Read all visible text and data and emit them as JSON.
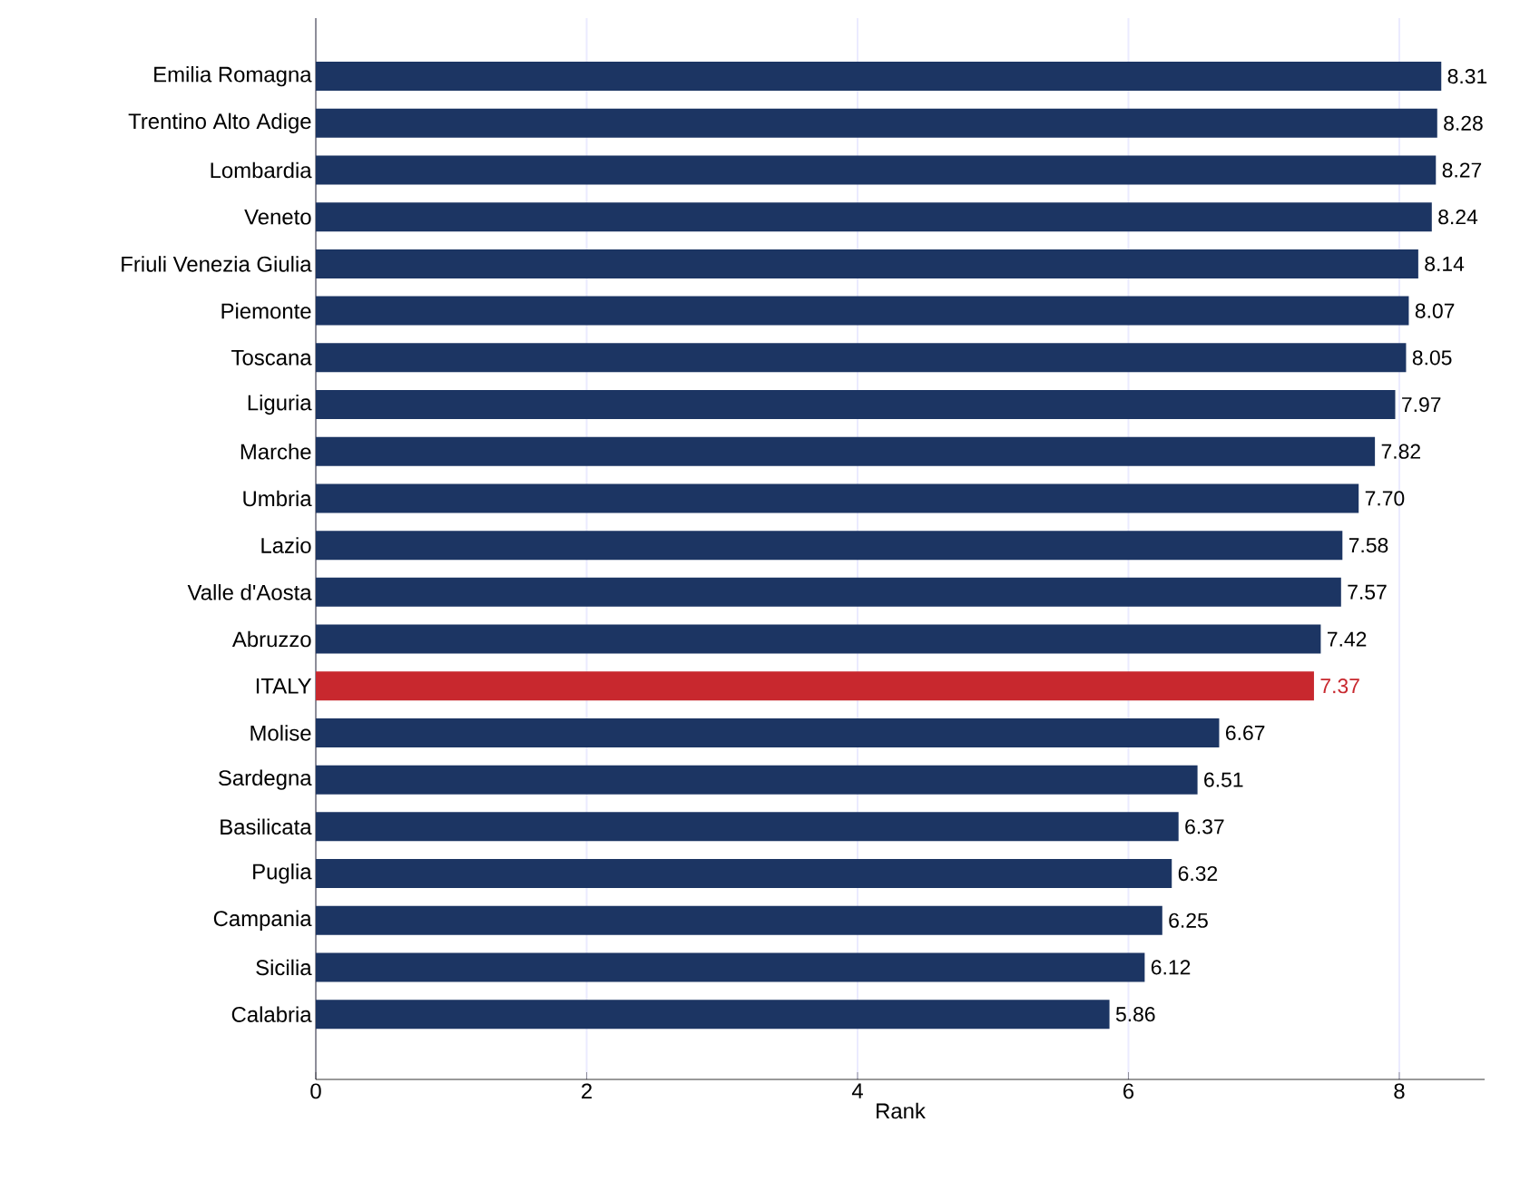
{
  "chart_data": {
    "type": "bar",
    "orientation": "horizontal",
    "xlabel": "Rank",
    "categories": [
      "Emilia Romagna",
      "Trentino Alto Adige",
      "Lombardia",
      "Veneto",
      "Friuli Venezia Giulia",
      "Piemonte",
      "Toscana",
      "Liguria",
      "Marche",
      "Umbria",
      "Lazio",
      "Valle d'Aosta",
      "Abruzzo",
      "ITALY",
      "Molise",
      "Sardegna",
      "Basilicata",
      "Puglia",
      "Campania",
      "Sicilia",
      "Calabria"
    ],
    "values": [
      8.31,
      8.28,
      8.27,
      8.24,
      8.14,
      8.07,
      8.05,
      7.97,
      7.82,
      7.7,
      7.58,
      7.57,
      7.42,
      7.37,
      6.67,
      6.51,
      6.37,
      6.32,
      6.25,
      6.12,
      5.86
    ],
    "value_labels": [
      "8.31",
      "8.28",
      "8.27",
      "8.24",
      "8.14",
      "8.07",
      "8.05",
      "7.97",
      "7.82",
      "7.70",
      "7.58",
      "7.57",
      "7.42",
      "7.37",
      "6.67",
      "6.51",
      "6.37",
      "6.32",
      "6.25",
      "6.12",
      "5.86"
    ],
    "colors": [
      "#1c3563",
      "#1c3563",
      "#1c3563",
      "#1c3563",
      "#1c3563",
      "#1c3563",
      "#1c3563",
      "#1c3563",
      "#1c3563",
      "#1c3563",
      "#1c3563",
      "#1c3563",
      "#1c3563",
      "#c8282e",
      "#1c3563",
      "#1c3563",
      "#1c3563",
      "#1c3563",
      "#1c3563",
      "#1c3563",
      "#1c3563"
    ],
    "xlim": [
      0,
      8.63
    ],
    "xticks": [
      0,
      2,
      4,
      6,
      8
    ],
    "grid": "x"
  }
}
